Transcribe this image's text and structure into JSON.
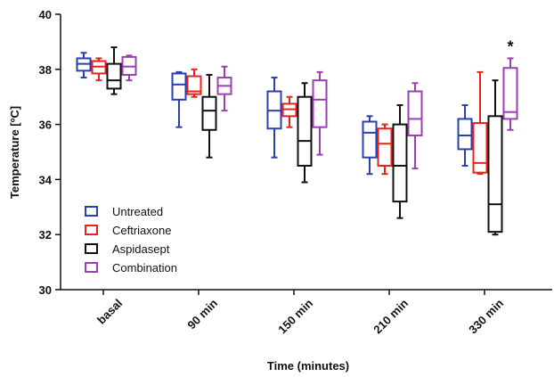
{
  "chart_data": {
    "type": "boxplot",
    "xlabel": "Time (minutes)",
    "ylabel": "Temperature [ºC]",
    "ylim": [
      30,
      40
    ],
    "yticks": [
      30,
      32,
      34,
      36,
      38,
      40
    ],
    "categories": [
      "basal",
      "90 min",
      "150 min",
      "210 min",
      "330 min"
    ],
    "legend_position": "bottom-left",
    "series": [
      {
        "name": "Untreated",
        "color": "#2a3fb0",
        "boxes": [
          {
            "min": 37.7,
            "q1": 37.95,
            "median": 38.2,
            "q3": 38.4,
            "max": 38.6
          },
          {
            "min": 35.9,
            "q1": 36.9,
            "median": 37.45,
            "q3": 37.85,
            "max": 37.9
          },
          {
            "min": 34.8,
            "q1": 35.85,
            "median": 36.5,
            "q3": 37.2,
            "max": 37.7
          },
          {
            "min": 34.2,
            "q1": 34.8,
            "median": 35.7,
            "q3": 36.1,
            "max": 36.3
          },
          {
            "min": 34.5,
            "q1": 35.1,
            "median": 35.6,
            "q3": 36.2,
            "max": 36.7
          }
        ]
      },
      {
        "name": "Ceftriaxone",
        "color": "#e8231c",
        "boxes": [
          {
            "min": 37.6,
            "q1": 37.85,
            "median": 38.1,
            "q3": 38.3,
            "max": 38.4
          },
          {
            "min": 37.0,
            "q1": 37.1,
            "median": 37.2,
            "q3": 37.75,
            "max": 38.0
          },
          {
            "min": 35.9,
            "q1": 36.3,
            "median": 36.55,
            "q3": 36.75,
            "max": 37.0
          },
          {
            "min": 34.2,
            "q1": 34.5,
            "median": 35.3,
            "q3": 35.85,
            "max": 36.0
          },
          {
            "min": 34.2,
            "q1": 34.25,
            "median": 34.6,
            "q3": 36.05,
            "max": 37.9
          }
        ]
      },
      {
        "name": "Aspidasept",
        "color": "#111111",
        "boxes": [
          {
            "min": 37.1,
            "q1": 37.3,
            "median": 37.6,
            "q3": 38.2,
            "max": 38.8
          },
          {
            "min": 34.8,
            "q1": 35.8,
            "median": 36.5,
            "q3": 37.0,
            "max": 37.8
          },
          {
            "min": 33.9,
            "q1": 34.5,
            "median": 35.4,
            "q3": 37.0,
            "max": 37.5
          },
          {
            "min": 32.6,
            "q1": 33.2,
            "median": 34.5,
            "q3": 36.0,
            "max": 36.7
          },
          {
            "min": 32.0,
            "q1": 32.1,
            "median": 33.1,
            "q3": 36.3,
            "max": 37.6
          }
        ]
      },
      {
        "name": "Combination",
        "color": "#9b3fb5",
        "boxes": [
          {
            "min": 37.6,
            "q1": 37.8,
            "median": 38.1,
            "q3": 38.45,
            "max": 38.5
          },
          {
            "min": 36.5,
            "q1": 37.1,
            "median": 37.4,
            "q3": 37.7,
            "max": 38.1
          },
          {
            "min": 34.9,
            "q1": 35.9,
            "median": 36.9,
            "q3": 37.6,
            "max": 37.9
          },
          {
            "min": 34.4,
            "q1": 35.6,
            "median": 36.2,
            "q3": 37.2,
            "max": 37.5
          },
          {
            "min": 35.8,
            "q1": 36.2,
            "median": 36.45,
            "q3": 38.05,
            "max": 38.4
          }
        ]
      }
    ],
    "annotations": [
      {
        "text": "*",
        "category": "330 min",
        "series": "Combination",
        "value": 38.95
      }
    ]
  }
}
